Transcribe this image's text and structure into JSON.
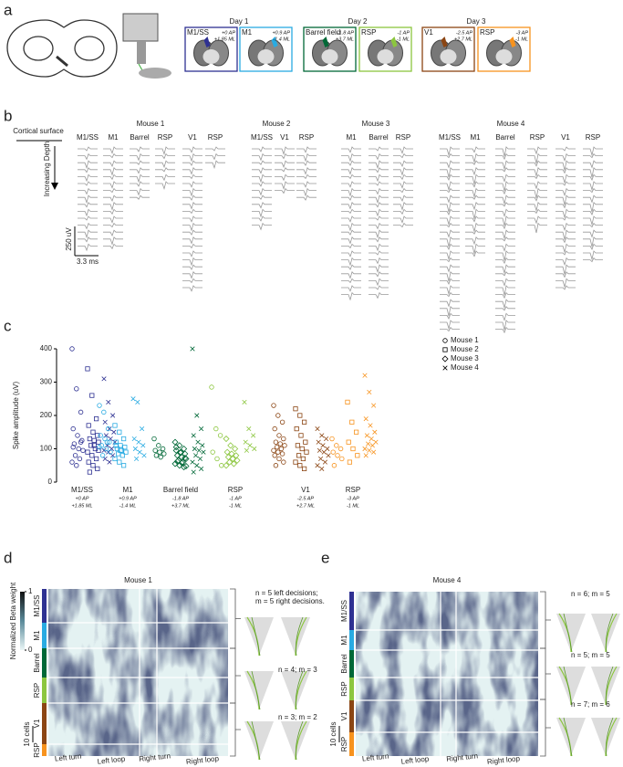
{
  "panel_a": {
    "label": "a",
    "days": [
      "Day 1",
      "Day 2",
      "Day 3"
    ],
    "sites": [
      {
        "name": "M1/SS",
        "ap": "+0 AP",
        "ml": "+1.85 ML",
        "color": "#2e3192"
      },
      {
        "name": "M1",
        "ap": "+0.9 AP",
        "ml": "-1.4 ML",
        "color": "#29abe2"
      },
      {
        "name": "Barrel field",
        "ap": "-1.8 AP",
        "ml": "+3.7 ML",
        "color": "#006837"
      },
      {
        "name": "RSP",
        "ap": "-1 AP",
        "ml": "-1 ML",
        "color": "#8cc63f"
      },
      {
        "name": "V1",
        "ap": "-2.5 AP",
        "ml": "+2.7 ML",
        "color": "#8b4513"
      },
      {
        "name": "RSP",
        "ap": "-3 AP",
        "ml": "-1 ML",
        "color": "#f7931e"
      }
    ]
  },
  "panel_b": {
    "label": "b",
    "surface": "Cortical surface",
    "depth": "Increasing Depth",
    "scale_y": "250 uV",
    "scale_x": "3.3 ms",
    "mice": [
      {
        "name": "Mouse 1",
        "columns": [
          {
            "name": "M1/SS",
            "color": "#2e3192",
            "waveforms": 15
          },
          {
            "name": "M1",
            "color": "#29abe2",
            "waveforms": 15
          },
          {
            "name": "Barrel",
            "color": "#006837",
            "waveforms": 8
          },
          {
            "name": "RSP",
            "color": "#8cc63f",
            "waveforms": 6
          },
          {
            "name": "V1",
            "color": "#8b4513",
            "waveforms": 21
          },
          {
            "name": "RSP",
            "color": "#f7931e",
            "waveforms": 3
          }
        ]
      },
      {
        "name": "Mouse 2",
        "columns": [
          {
            "name": "M1/SS",
            "color": "#2e3192",
            "waveforms": 12
          },
          {
            "name": "V1",
            "color": "#8b4513",
            "waveforms": 7
          },
          {
            "name": "RSP",
            "color": "#f7931e",
            "waveforms": 8
          }
        ]
      },
      {
        "name": "Mouse 3",
        "columns": [
          {
            "name": "M1",
            "color": "#29abe2",
            "waveforms": 22
          },
          {
            "name": "Barrel",
            "color": "#006837",
            "waveforms": 22
          },
          {
            "name": "RSP",
            "color": "#8cc63f",
            "waveforms": 12
          }
        ]
      },
      {
        "name": "Mouse 4",
        "columns": [
          {
            "name": "M1/SS",
            "color": "#2e3192",
            "waveforms": 27
          },
          {
            "name": "M1",
            "color": "#29abe2",
            "waveforms": 16
          },
          {
            "name": "Barrel",
            "color": "#006837",
            "waveforms": 27
          },
          {
            "name": "RSP",
            "color": "#8cc63f",
            "waveforms": 12
          },
          {
            "name": "V1",
            "color": "#8b4513",
            "waveforms": 21
          },
          {
            "name": "RSP",
            "color": "#f7931e",
            "waveforms": 17
          }
        ]
      }
    ]
  },
  "chart_data": {
    "type": "scatter",
    "label": "c",
    "ylabel": "Spike amplitude (uV)",
    "ylim": [
      0,
      400
    ],
    "yticks": [
      0,
      100,
      200,
      300,
      400
    ],
    "legend": "upper right",
    "legend_entries": [
      {
        "name": "Mouse 1",
        "marker": "circle"
      },
      {
        "name": "Mouse 2",
        "marker": "square"
      },
      {
        "name": "Mouse 3",
        "marker": "diamond"
      },
      {
        "name": "Mouse 4",
        "marker": "x"
      }
    ],
    "groups": [
      {
        "label": "M1/SS",
        "ap": "+0 AP",
        "ml": "+1.85 ML",
        "color": "#2e3192",
        "series": [
          {
            "marker": "circle",
            "values": [
              400,
              280,
              210,
              160,
              140,
              125,
              115,
              100,
              95,
              80,
              70,
              60,
              50,
              120,
              105
            ]
          },
          {
            "marker": "square",
            "values": [
              340,
              260,
              190,
              170,
              150,
              140,
              130,
              125,
              120,
              110,
              100,
              90,
              80,
              70,
              60,
              50,
              40,
              30,
              110,
              95
            ]
          },
          {
            "marker": "x",
            "values": [
              310,
              240,
              200,
              180,
              160,
              150,
              140,
              130,
              120,
              110,
              100,
              95,
              90,
              80,
              70,
              60
            ]
          }
        ]
      },
      {
        "label": "M1",
        "ap": "+0.9 AP",
        "ml": "-1.4 ML",
        "color": "#29abe2",
        "series": [
          {
            "marker": "circle",
            "values": [
              230,
              210,
              160,
              140,
              130,
              120,
              110,
              100,
              90,
              80,
              120,
              105
            ]
          },
          {
            "marker": "square",
            "values": [
              170,
              150,
              130,
              120,
              110,
              105,
              100,
              95,
              90,
              85,
              80,
              70,
              60,
              50,
              110,
              95
            ]
          },
          {
            "marker": "x",
            "values": [
              250,
              240,
              160,
              130,
              120,
              110,
              100,
              90,
              80,
              70
            ]
          }
        ]
      },
      {
        "label": "Barrel field",
        "ap": "-1.8 AP",
        "ml": "+3.7 ML",
        "color": "#006837",
        "series": [
          {
            "marker": "circle",
            "values": [
              130,
              110,
              100,
              95,
              90,
              85,
              80,
              75
            ]
          },
          {
            "marker": "diamond",
            "values": [
              120,
              110,
              100,
              95,
              90,
              85,
              80,
              75,
              70,
              65,
              60,
              55,
              50,
              45,
              105,
              88,
              72,
              62,
              58,
              48
            ]
          },
          {
            "marker": "x",
            "values": [
              400,
              200,
              160,
              140,
              120,
              110,
              100,
              95,
              90,
              80,
              70,
              60,
              50,
              40,
              30
            ]
          }
        ]
      },
      {
        "label": "RSP",
        "ap": "-1 AP",
        "ml": "-1 ML",
        "color": "#8cc63f",
        "series": [
          {
            "marker": "circle",
            "values": [
              285,
              160,
              140,
              90,
              70,
              50
            ]
          },
          {
            "marker": "diamond",
            "values": [
              130,
              110,
              100,
              90,
              85,
              80,
              75,
              70,
              65,
              60,
              55,
              50
            ]
          },
          {
            "marker": "x",
            "values": [
              240,
              160,
              140,
              120,
              110,
              100,
              95
            ]
          }
        ]
      },
      {
        "label": "V1",
        "ap": "-2.5 AP",
        "ml": "+2.7 ML",
        "color": "#8b4513",
        "series": [
          {
            "marker": "circle",
            "values": [
              230,
              200,
              180,
              160,
              140,
              130,
              120,
              115,
              110,
              105,
              100,
              95,
              90,
              85,
              80,
              70,
              60,
              50
            ]
          },
          {
            "marker": "square",
            "values": [
              220,
              200,
              180,
              160,
              140,
              120,
              110,
              100,
              90,
              80,
              70,
              60,
              50,
              40
            ]
          },
          {
            "marker": "x",
            "values": [
              160,
              140,
              130,
              120,
              110,
              100,
              95,
              90,
              80,
              70,
              60,
              50,
              40
            ]
          }
        ]
      },
      {
        "label": "RSP",
        "ap": "-3 AP",
        "ml": "-1 ML",
        "color": "#f7931e",
        "series": [
          {
            "marker": "circle",
            "values": [
              130,
              110,
              100,
              90,
              80,
              70,
              50
            ]
          },
          {
            "marker": "square",
            "values": [
              240,
              180,
              150,
              120,
              100,
              80,
              60
            ]
          },
          {
            "marker": "x",
            "values": [
              320,
              270,
              230,
              190,
              170,
              150,
              140,
              130,
              120,
              115,
              110,
              100,
              95,
              90,
              80
            ]
          }
        ]
      }
    ]
  },
  "panel_d": {
    "label": "d",
    "title": "Mouse 1",
    "colorbar_label": "Normalized Beta weight",
    "colorbar_ticks": [
      1,
      0
    ],
    "scale": "10 cells",
    "regions": [
      {
        "name": "M1/SS",
        "color": "#2e3192"
      },
      {
        "name": "M1",
        "color": "#29abe2"
      },
      {
        "name": "Barrel",
        "color": "#006837"
      },
      {
        "name": "RSP",
        "color": "#8cc63f"
      },
      {
        "name": "V1",
        "color": "#8b4513"
      },
      {
        "name": "RSP",
        "color": "#f7931e"
      }
    ],
    "conditions": [
      "Left turn",
      "Left loop",
      "Right turn",
      "Right loop"
    ],
    "annotations": [
      "n = 5 left decisions;",
      "m = 5 right decisions.",
      "n = 4; m = 3",
      "n = 3; m = 2"
    ]
  },
  "panel_e": {
    "label": "e",
    "title": "Mouse 4",
    "scale": "10 cells",
    "regions": [
      {
        "name": "M1/SS",
        "color": "#2e3192"
      },
      {
        "name": "M1",
        "color": "#29abe2"
      },
      {
        "name": "Barrel",
        "color": "#006837"
      },
      {
        "name": "RSP",
        "color": "#8cc63f"
      },
      {
        "name": "V1",
        "color": "#8b4513"
      },
      {
        "name": "RSP",
        "color": "#f7931e"
      }
    ],
    "conditions": [
      "Left turn",
      "Left loop",
      "Right turn",
      "Right loop"
    ],
    "annotations": [
      "n = 6; m = 5",
      "n = 5; m = 5",
      "n = 7; m = 6"
    ]
  }
}
